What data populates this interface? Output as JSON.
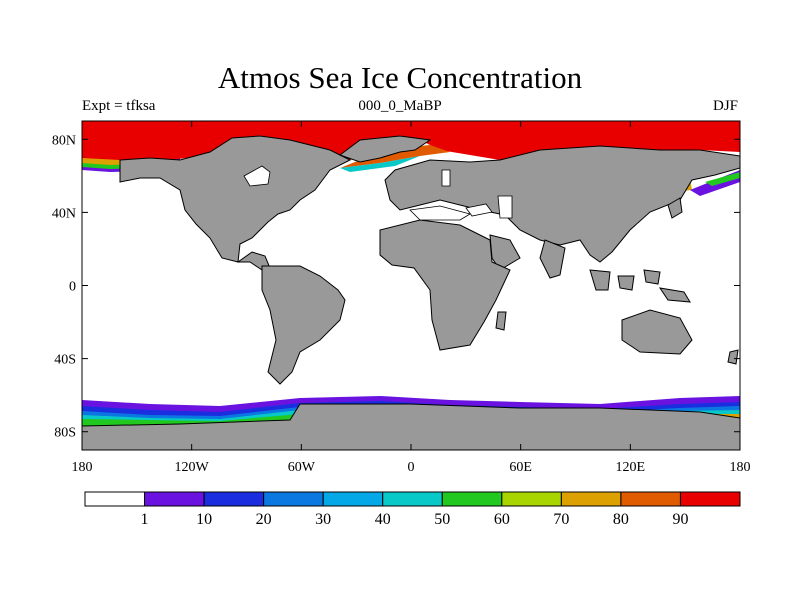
{
  "chart_data": {
    "type": "map",
    "title": "Atmos Sea Ice Concentration",
    "subtitle_left": "Expt = tfksa",
    "subtitle_center": "000_0_MaBP",
    "subtitle_right": "DJF",
    "lon_range": [
      -180,
      180
    ],
    "lat_range": [
      -90,
      90
    ],
    "x_ticks": [
      {
        "value": -180,
        "label": "180"
      },
      {
        "value": -120,
        "label": "120W"
      },
      {
        "value": -60,
        "label": "60W"
      },
      {
        "value": 0,
        "label": "0"
      },
      {
        "value": 60,
        "label": "60E"
      },
      {
        "value": 120,
        "label": "120E"
      },
      {
        "value": 180,
        "label": "180"
      }
    ],
    "y_ticks": [
      {
        "value": 80,
        "label": "80N"
      },
      {
        "value": 40,
        "label": "40N"
      },
      {
        "value": 0,
        "label": "0"
      },
      {
        "value": -40,
        "label": "40S"
      },
      {
        "value": -80,
        "label": "80S"
      }
    ],
    "colorbar": {
      "labels": [
        "1",
        "10",
        "20",
        "30",
        "40",
        "50",
        "60",
        "70",
        "80",
        "90"
      ],
      "colors": [
        "#ffffff",
        "#6a12e0",
        "#1a2ee0",
        "#0a78e0",
        "#05a8e6",
        "#08c8c8",
        "#20c820",
        "#a8d400",
        "#dca000",
        "#e05a00",
        "#e80000"
      ]
    },
    "land_color": "#999999"
  }
}
